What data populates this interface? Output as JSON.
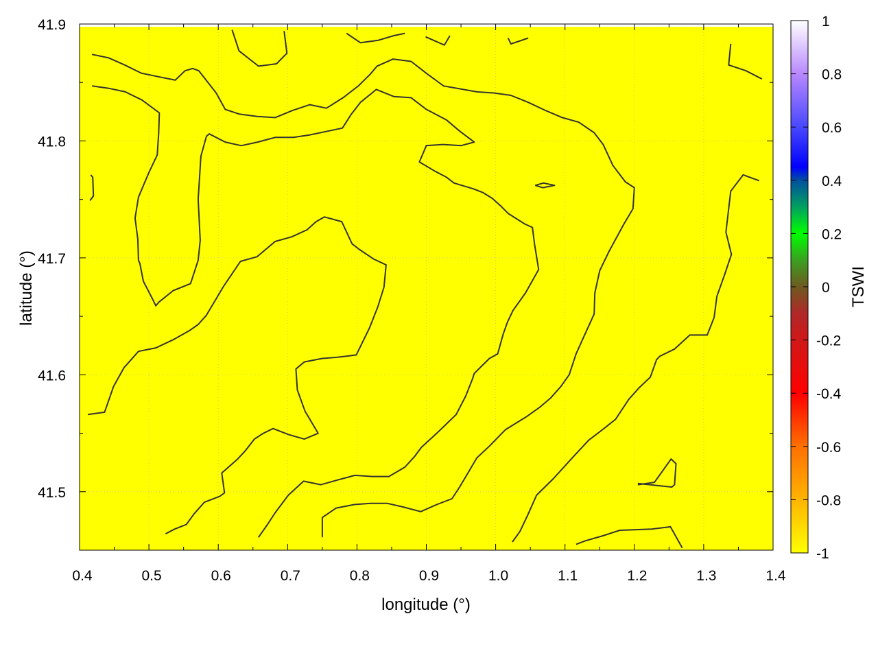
{
  "chart_data": {
    "type": "heatmap",
    "title": "",
    "xlabel": "longitude (°)",
    "ylabel": "latitude (°)",
    "colorbar_label": "TSWI",
    "xlim": [
      0.4,
      1.4
    ],
    "ylim": [
      41.45,
      41.9
    ],
    "xticks": [
      "0.4",
      "0.5",
      "0.6",
      "0.7",
      "0.8",
      "0.9",
      "1.0",
      "1.1",
      "1.2",
      "1.3",
      "1.4"
    ],
    "yticks": [
      "41.5",
      "41.6",
      "41.7",
      "41.8",
      "41.9"
    ],
    "colorbar_range": [
      -1,
      1
    ],
    "colorbar_ticks": [
      "-1",
      "-0.8",
      "-0.6",
      "-0.4",
      "-0.2",
      "0",
      "0.2",
      "0.4",
      "0.6",
      "0.8",
      "1"
    ],
    "colormap": [
      {
        "v": -1.0,
        "color": "#ffff00"
      },
      {
        "v": -0.8,
        "color": "#ffb400"
      },
      {
        "v": -0.6,
        "color": "#ff7000"
      },
      {
        "v": -0.4,
        "color": "#ff0000"
      },
      {
        "v": -0.2,
        "color": "#d01818"
      },
      {
        "v": -0.1,
        "color": "#b02828"
      },
      {
        "v": 0.0,
        "color": "#6e5a20"
      },
      {
        "v": 0.1,
        "color": "#3aa020"
      },
      {
        "v": 0.2,
        "color": "#00ff00"
      },
      {
        "v": 0.3,
        "color": "#00a060"
      },
      {
        "v": 0.4,
        "color": "#0050a0"
      },
      {
        "v": 0.45,
        "color": "#0000ff"
      },
      {
        "v": 0.6,
        "color": "#4848ff"
      },
      {
        "v": 0.8,
        "color": "#b888ff"
      },
      {
        "v": 1.0,
        "color": "#ffffff"
      }
    ],
    "field_value": -1,
    "grid": true,
    "contour_color": "#333333",
    "contours": [
      [
        [
          0.418,
          41.874
        ],
        [
          0.442,
          41.871
        ],
        [
          0.465,
          41.865
        ],
        [
          0.489,
          41.858
        ],
        [
          0.513,
          41.855
        ],
        [
          0.538,
          41.852
        ],
        [
          0.552,
          41.86
        ],
        [
          0.563,
          41.862
        ],
        [
          0.572,
          41.86
        ],
        [
          0.597,
          41.841
        ],
        [
          0.61,
          41.827
        ],
        [
          0.63,
          41.823
        ],
        [
          0.656,
          41.821
        ],
        [
          0.682,
          41.82
        ],
        [
          0.707,
          41.826
        ],
        [
          0.732,
          41.831
        ],
        [
          0.756,
          41.828
        ],
        [
          0.78,
          41.837
        ],
        [
          0.802,
          41.847
        ],
        [
          0.819,
          41.857
        ],
        [
          0.829,
          41.864
        ],
        [
          0.852,
          41.87
        ],
        [
          0.878,
          41.868
        ],
        [
          0.902,
          41.857
        ],
        [
          0.925,
          41.847
        ],
        [
          0.973,
          41.842
        ],
        [
          0.998,
          41.841
        ],
        [
          1.022,
          41.839
        ],
        [
          1.047,
          41.833
        ],
        [
          1.072,
          41.826
        ],
        [
          1.096,
          41.82
        ],
        [
          1.12,
          41.816
        ],
        [
          1.142,
          41.807
        ],
        [
          1.155,
          41.797
        ],
        [
          1.169,
          41.779
        ],
        [
          1.187,
          41.765
        ],
        [
          1.2,
          41.76
        ],
        [
          1.198,
          41.742
        ],
        [
          1.185,
          41.729
        ],
        [
          1.174,
          41.717
        ],
        [
          1.163,
          41.705
        ],
        [
          1.15,
          41.689
        ],
        [
          1.143,
          41.67
        ],
        [
          1.142,
          41.652
        ],
        [
          1.129,
          41.635
        ],
        [
          1.116,
          41.618
        ],
        [
          1.106,
          41.6
        ],
        [
          1.094,
          41.59
        ],
        [
          1.079,
          41.58
        ],
        [
          1.063,
          41.572
        ],
        [
          1.044,
          41.564
        ],
        [
          1.014,
          41.553
        ],
        [
          0.991,
          41.539
        ],
        [
          0.973,
          41.529
        ],
        [
          0.96,
          41.516
        ],
        [
          0.948,
          41.504
        ],
        [
          0.937,
          41.494
        ],
        [
          0.915,
          41.489
        ],
        [
          0.892,
          41.483
        ],
        [
          0.866,
          41.487
        ],
        [
          0.844,
          41.49
        ],
        [
          0.819,
          41.49
        ],
        [
          0.796,
          41.489
        ],
        [
          0.77,
          41.486
        ],
        [
          0.75,
          41.478
        ],
        [
          0.75,
          41.461
        ]
      ],
      [
        [
          0.418,
          41.847
        ],
        [
          0.442,
          41.845
        ],
        [
          0.466,
          41.842
        ],
        [
          0.49,
          41.835
        ],
        [
          0.515,
          41.824
        ],
        [
          0.514,
          41.806
        ],
        [
          0.512,
          41.788
        ],
        [
          0.5,
          41.773
        ],
        [
          0.485,
          41.752
        ],
        [
          0.48,
          41.734
        ],
        [
          0.484,
          41.716
        ],
        [
          0.485,
          41.698
        ],
        [
          0.487,
          41.695
        ],
        [
          0.492,
          41.68
        ],
        [
          0.505,
          41.665
        ],
        [
          0.51,
          41.659
        ],
        [
          0.514,
          41.662
        ],
        [
          0.535,
          41.672
        ],
        [
          0.56,
          41.678
        ],
        [
          0.571,
          41.698
        ],
        [
          0.574,
          41.715
        ],
        [
          0.571,
          41.75
        ],
        [
          0.575,
          41.787
        ],
        [
          0.583,
          41.804
        ],
        [
          0.587,
          41.806
        ],
        [
          0.61,
          41.799
        ],
        [
          0.633,
          41.796
        ],
        [
          0.657,
          41.799
        ],
        [
          0.682,
          41.803
        ],
        [
          0.708,
          41.803
        ],
        [
          0.731,
          41.805
        ],
        [
          0.755,
          41.808
        ],
        [
          0.779,
          41.811
        ],
        [
          0.792,
          41.823
        ],
        [
          0.805,
          41.833
        ],
        [
          0.828,
          41.844
        ],
        [
          0.853,
          41.838
        ],
        [
          0.878,
          41.837
        ],
        [
          0.9,
          41.827
        ],
        [
          0.929,
          41.818
        ],
        [
          0.949,
          41.808
        ],
        [
          0.969,
          41.799
        ],
        [
          0.95,
          41.796
        ],
        [
          0.924,
          41.797
        ],
        [
          0.9,
          41.796
        ],
        [
          0.89,
          41.782
        ],
        [
          0.913,
          41.774
        ],
        [
          0.929,
          41.769
        ],
        [
          0.94,
          41.764
        ],
        [
          0.968,
          41.759
        ],
        [
          0.981,
          41.756
        ],
        [
          0.995,
          41.751
        ],
        [
          1.008,
          41.744
        ],
        [
          1.018,
          41.738
        ],
        [
          1.042,
          41.729
        ],
        [
          1.053,
          41.726
        ],
        [
          1.056,
          41.712
        ],
        [
          1.062,
          41.69
        ],
        [
          1.043,
          41.67
        ],
        [
          1.025,
          41.655
        ],
        [
          1.017,
          41.645
        ],
        [
          1.011,
          41.635
        ],
        [
          1.003,
          41.618
        ],
        [
          0.991,
          41.614
        ],
        [
          0.979,
          41.607
        ],
        [
          0.969,
          41.601
        ],
        [
          0.967,
          41.597
        ],
        [
          0.957,
          41.582
        ],
        [
          0.943,
          41.566
        ],
        [
          0.915,
          41.55
        ],
        [
          0.893,
          41.538
        ],
        [
          0.883,
          41.53
        ],
        [
          0.869,
          41.521
        ],
        [
          0.846,
          41.513
        ],
        [
          0.822,
          41.513
        ],
        [
          0.797,
          41.514
        ],
        [
          0.772,
          41.51
        ],
        [
          0.748,
          41.506
        ],
        [
          0.723,
          41.509
        ],
        [
          0.701,
          41.497
        ],
        [
          0.682,
          41.482
        ],
        [
          0.671,
          41.472
        ],
        [
          0.658,
          41.461
        ]
      ],
      [
        [
          0.412,
          41.566
        ],
        [
          0.436,
          41.568
        ],
        [
          0.439,
          41.573
        ],
        [
          0.449,
          41.59
        ],
        [
          0.464,
          41.606
        ],
        [
          0.485,
          41.62
        ],
        [
          0.51,
          41.623
        ],
        [
          0.535,
          41.63
        ],
        [
          0.559,
          41.638
        ],
        [
          0.571,
          41.643
        ],
        [
          0.583,
          41.651
        ],
        [
          0.608,
          41.676
        ],
        [
          0.632,
          41.697
        ],
        [
          0.656,
          41.701
        ],
        [
          0.682,
          41.714
        ],
        [
          0.706,
          41.718
        ],
        [
          0.728,
          41.724
        ],
        [
          0.741,
          41.731
        ],
        [
          0.753,
          41.735
        ],
        [
          0.778,
          41.731
        ],
        [
          0.793,
          41.712
        ],
        [
          0.804,
          41.707
        ],
        [
          0.824,
          41.699
        ],
        [
          0.842,
          41.694
        ],
        [
          0.839,
          41.675
        ],
        [
          0.83,
          41.658
        ],
        [
          0.818,
          41.64
        ],
        [
          0.799,
          41.617
        ],
        [
          0.772,
          41.615
        ],
        [
          0.75,
          41.614
        ],
        [
          0.724,
          41.611
        ],
        [
          0.712,
          41.605
        ],
        [
          0.714,
          41.587
        ],
        [
          0.725,
          41.569
        ],
        [
          0.744,
          41.55
        ],
        [
          0.724,
          41.545
        ],
        [
          0.701,
          41.549
        ],
        [
          0.679,
          41.554
        ],
        [
          0.665,
          41.55
        ],
        [
          0.652,
          41.545
        ],
        [
          0.639,
          41.535
        ],
        [
          0.628,
          41.528
        ],
        [
          0.605,
          41.516
        ],
        [
          0.609,
          41.499
        ],
        [
          0.602,
          41.496
        ],
        [
          0.58,
          41.491
        ],
        [
          0.565,
          41.481
        ],
        [
          0.554,
          41.472
        ],
        [
          0.537,
          41.468
        ],
        [
          0.524,
          41.464
        ]
      ],
      [
        [
          0.62,
          41.895
        ],
        [
          0.63,
          41.877
        ],
        [
          0.658,
          41.864
        ],
        [
          0.684,
          41.866
        ],
        [
          0.699,
          41.875
        ],
        [
          0.695,
          41.894
        ]
      ],
      [
        [
          0.785,
          41.892
        ],
        [
          0.805,
          41.884
        ],
        [
          0.83,
          41.886
        ],
        [
          0.853,
          41.89
        ],
        [
          0.869,
          41.892
        ]
      ],
      [
        [
          0.899,
          41.889
        ],
        [
          0.926,
          41.882
        ],
        [
          0.934,
          41.89
        ]
      ],
      [
        [
          1.018,
          41.888
        ],
        [
          1.022,
          41.883
        ],
        [
          1.047,
          41.888
        ]
      ],
      [
        [
          1.339,
          41.883
        ],
        [
          1.336,
          41.865
        ],
        [
          1.361,
          41.86
        ],
        [
          1.384,
          41.853
        ]
      ],
      [
        [
          1.38,
          41.766
        ],
        [
          1.357,
          41.771
        ],
        [
          1.339,
          41.757
        ],
        [
          1.332,
          41.722
        ],
        [
          1.34,
          41.703
        ],
        [
          1.331,
          41.687
        ],
        [
          1.319,
          41.667
        ],
        [
          1.315,
          41.649
        ],
        [
          1.305,
          41.634
        ],
        [
          1.28,
          41.634
        ],
        [
          1.258,
          41.622
        ],
        [
          1.237,
          41.616
        ],
        [
          1.232,
          41.613
        ],
        [
          1.223,
          41.598
        ],
        [
          1.207,
          41.589
        ],
        [
          1.192,
          41.579
        ],
        [
          1.173,
          41.562
        ],
        [
          1.154,
          41.553
        ],
        [
          1.134,
          41.544
        ],
        [
          1.109,
          41.528
        ],
        [
          1.083,
          41.511
        ],
        [
          1.059,
          41.497
        ],
        [
          1.047,
          41.481
        ],
        [
          1.035,
          41.466
        ],
        [
          1.024,
          41.457
        ]
      ],
      [
        [
          1.116,
          41.455
        ],
        [
          1.129,
          41.458
        ],
        [
          1.153,
          41.462
        ],
        [
          1.179,
          41.467
        ],
        [
          1.225,
          41.468
        ],
        [
          1.252,
          41.47
        ],
        [
          1.269,
          41.452
        ]
      ],
      [
        [
          1.205,
          41.506
        ],
        [
          1.229,
          41.508
        ],
        [
          1.253,
          41.528
        ],
        [
          1.26,
          41.524
        ],
        [
          1.258,
          41.506
        ],
        [
          1.254,
          41.504
        ],
        [
          1.205,
          41.507
        ]
      ],
      [
        [
          1.057,
          41.762
        ],
        [
          1.069,
          41.764
        ],
        [
          1.085,
          41.762
        ],
        [
          1.068,
          41.76
        ],
        [
          1.057,
          41.762
        ]
      ],
      [
        [
          0.416,
          41.771
        ],
        [
          0.419,
          41.769
        ],
        [
          0.42,
          41.753
        ],
        [
          0.415,
          41.749
        ]
      ]
    ]
  }
}
